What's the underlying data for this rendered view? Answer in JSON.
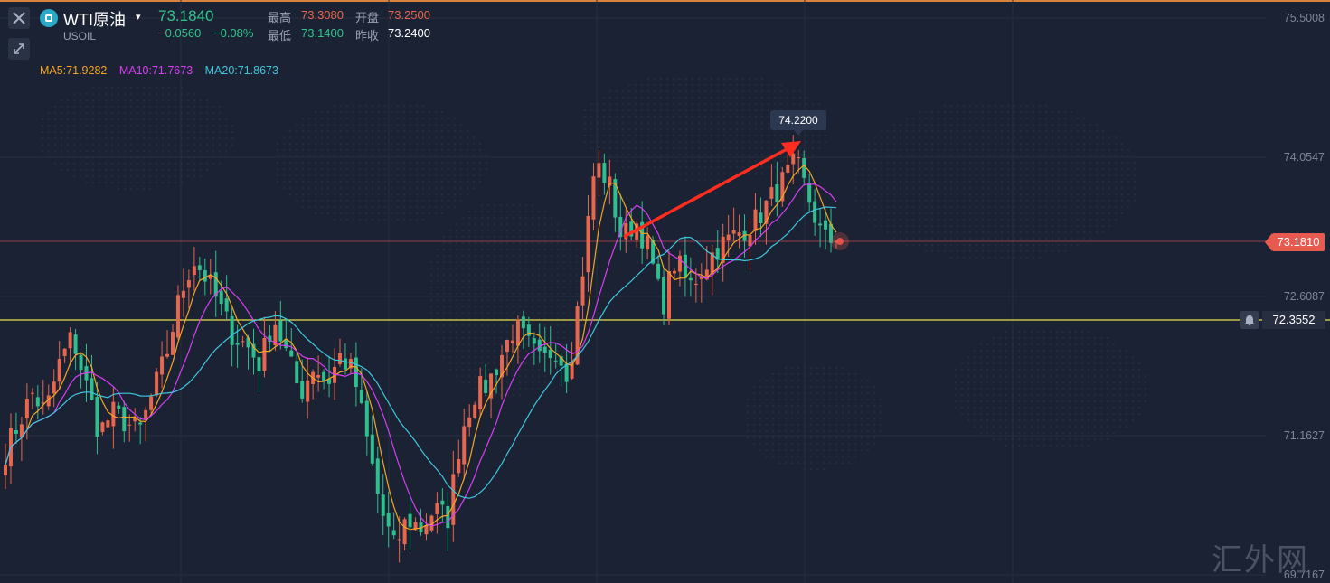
{
  "header": {
    "symbol_name": "WTI原油",
    "dropdown_glyph": "▾",
    "symbol_code": "USOIL",
    "last_price": "73.1840",
    "change_abs": "−0.0560",
    "change_pct": "−0.08%",
    "high_label": "最高",
    "high_value": "73.3080",
    "open_label": "开盘",
    "open_value": "73.2500",
    "low_label": "最低",
    "low_value": "73.1400",
    "prev_close_label": "昨收",
    "prev_close_value": "73.2400"
  },
  "ma_legend": {
    "ma5": "MA5:71.9282",
    "ma10": "MA10:71.7673",
    "ma20": "MA20:71.8673"
  },
  "price_axis": {
    "labels": [
      "75.5008",
      "74.0547",
      "72.6087",
      "71.1627",
      "69.7167"
    ],
    "current_price_tag": "73.1810",
    "alert_price": "72.3552"
  },
  "annotation": {
    "peak_label": "74.2200"
  },
  "watermark": "汇外网",
  "colors": {
    "background": "#1b2233",
    "up": "#e8664d",
    "down": "#2fbf8f",
    "ma5": "#f5a623",
    "ma10": "#d63ef2",
    "ma20": "#3fc7de",
    "alert_line": "#e8e34a",
    "current_line": "#c94c4c",
    "arrow": "#ff2d1f"
  },
  "icons": {
    "close": "close-icon",
    "collapse": "collapse-arrows-icon",
    "symbol": "symbol-badge-icon",
    "alert": "bell-icon"
  },
  "chart_data": {
    "type": "candlestick",
    "ylim": [
      69.7167,
      75.5008
    ],
    "alert_level": 72.3552,
    "current_level": 73.181,
    "peak_value": 74.22,
    "close_path": [
      71.0,
      71.3,
      71.6,
      71.4,
      71.9,
      72.2,
      71.7,
      71.2,
      71.4,
      71.3,
      71.2,
      71.6,
      72.0,
      72.6,
      73.0,
      72.8,
      72.5,
      72.2,
      72.1,
      71.9,
      72.4,
      72.0,
      71.6,
      71.9,
      71.7,
      72.0,
      71.8,
      71.1,
      70.4,
      70.0,
      70.3,
      70.2,
      70.4,
      70.3,
      71.2,
      71.6,
      71.7,
      72.0,
      72.3,
      72.1,
      71.9,
      72.1,
      71.8,
      72.8,
      74.0,
      73.8,
      73.2,
      73.4,
      73.1,
      72.5,
      73.0,
      72.7,
      72.9,
      73.1,
      73.2,
      73.3,
      73.4,
      73.6,
      73.8,
      74.0,
      73.6,
      73.2,
      73.19
    ]
  }
}
